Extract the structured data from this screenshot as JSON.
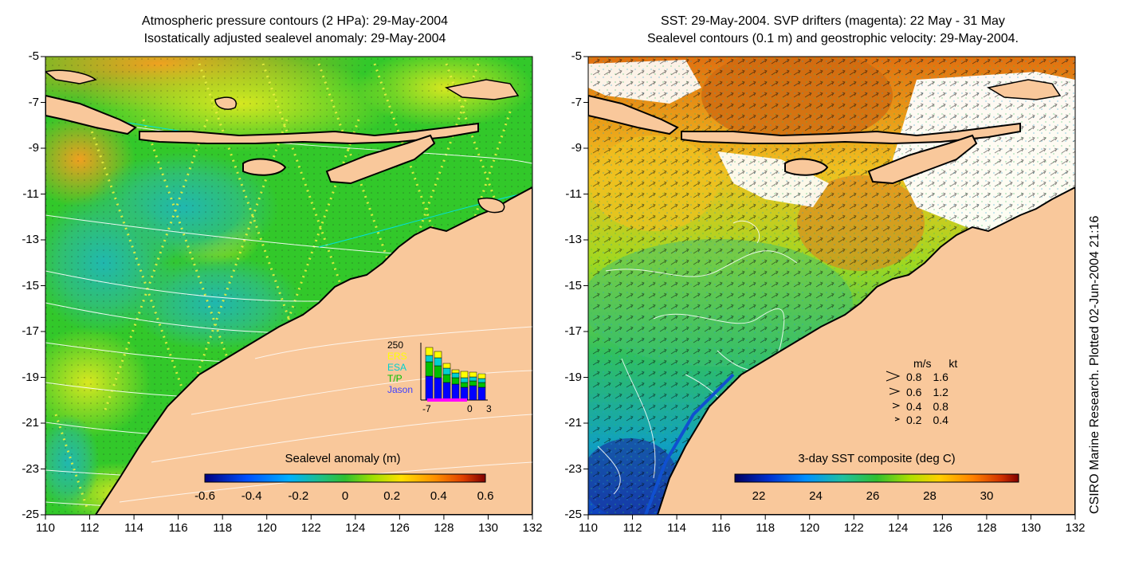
{
  "left_panel": {
    "title_line1": "Atmospheric pressure contours (2 HPa): 29-May-2004",
    "title_line2": "Isostatically adjusted sealevel anomaly: 29-May-2004",
    "colorbar": {
      "title": "Sealevel anomaly (m)",
      "ticks": [
        "-0.6",
        "-0.4",
        "-0.2",
        "0",
        "0.2",
        "0.4",
        "0.6"
      ],
      "colors": [
        "#000080",
        "#0040ff",
        "#00a0ff",
        "#00c0a0",
        "#20c040",
        "#40d000",
        "#a0e000",
        "#ffe000",
        "#ffa000",
        "#ff6000",
        "#c02000",
        "#800000"
      ]
    },
    "inset": {
      "y_max": "250",
      "legend": [
        "ERS",
        "ESA",
        "T/P",
        "Jason"
      ],
      "legend_colors": [
        "#ffff00",
        "#00d0d0",
        "#00c000",
        "#0000ff"
      ],
      "x_ticks": [
        "-7",
        "0",
        "3"
      ]
    }
  },
  "right_panel": {
    "title_line1": "SST: 29-May-2004. SVP drifters (magenta): 22 May - 31 May",
    "title_line2": "Sealevel contours (0.1 m) and geostrophic velocity: 29-May-2004.",
    "colorbar": {
      "title": "3-day SST composite (deg C)",
      "ticks": [
        "22",
        "24",
        "26",
        "28",
        "30"
      ],
      "colors": [
        "#000060",
        "#0020c0",
        "#0080ff",
        "#00c0c0",
        "#20c080",
        "#40c000",
        "#a0e000",
        "#ffe000",
        "#ffa000",
        "#ff6000",
        "#c02000",
        "#800000"
      ]
    },
    "velocity_legend": {
      "header_ms": "m/s",
      "header_kt": "kt",
      "rows": [
        {
          "ms": "0.8",
          "kt": "1.6"
        },
        {
          "ms": "0.6",
          "kt": "1.2"
        },
        {
          "ms": "0.4",
          "kt": "0.8"
        },
        {
          "ms": "0.2",
          "kt": "0.4"
        }
      ]
    }
  },
  "axes": {
    "lat_ticks": [
      "-5",
      "-7",
      "-9",
      "-11",
      "-13",
      "-15",
      "-17",
      "-19",
      "-21",
      "-23",
      "-25"
    ],
    "lon_ticks": [
      "110",
      "112",
      "114",
      "116",
      "118",
      "120",
      "122",
      "124",
      "126",
      "128",
      "130",
      "132"
    ]
  },
  "credit": "CSIRO Marine Research. Plotted 02-Jun-2004 21:16",
  "colors": {
    "land": "#f9c89b",
    "left_base": "#2ec82a",
    "right_base": "#f0b020",
    "coast": "#000000",
    "contour": "#ffffff"
  }
}
